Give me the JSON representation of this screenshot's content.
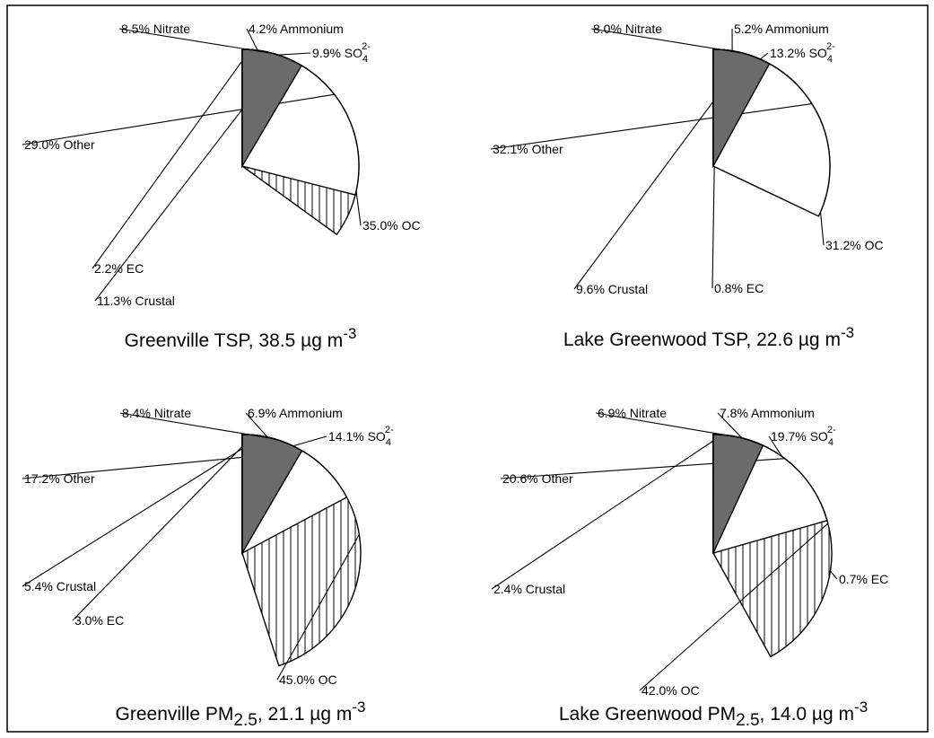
{
  "chart_data": [
    {
      "type": "pie",
      "title_parts": {
        "pre": "Greenville TSP, 38.5 µg m",
        "sub": "",
        "mid": "",
        "sup": "-3"
      },
      "slices": [
        {
          "name": "Ammonium",
          "label": "4.2% Ammonium",
          "value": 4.2,
          "fill": "hatch-diag"
        },
        {
          "name": "SO4",
          "label": "9.9% SO",
          "sub": "4",
          "sup": "2-",
          "value": 9.9,
          "fill": "gray"
        },
        {
          "name": "OC",
          "label": "35.0% OC",
          "value": 35.0,
          "fill": "hatch-vert"
        },
        {
          "name": "Crustal",
          "label": "11.3% Crustal",
          "value": 11.3,
          "fill": "dots"
        },
        {
          "name": "EC",
          "label": "2.2% EC",
          "value": 2.2,
          "fill": "black"
        },
        {
          "name": "Other",
          "label": "29.0% Other",
          "value": 29.0,
          "fill": "white"
        },
        {
          "name": "Nitrate",
          "label": "8.5% Nitrate",
          "value": 8.5,
          "fill": "darkgray"
        }
      ]
    },
    {
      "type": "pie",
      "title_parts": {
        "pre": "Lake Greenwood TSP, 22.6 µg m",
        "sub": "",
        "mid": "",
        "sup": "-3"
      },
      "slices": [
        {
          "name": "Ammonium",
          "label": "5.2% Ammonium",
          "value": 5.2,
          "fill": "hatch-diag"
        },
        {
          "name": "SO4",
          "label": "13.2% SO",
          "sub": "4",
          "sup": "2-",
          "value": 13.2,
          "fill": "gray"
        },
        {
          "name": "OC",
          "label": "31.2% OC",
          "value": 31.2,
          "fill": "hatch-vert"
        },
        {
          "name": "EC",
          "label": "0.8% EC",
          "value": 0.8,
          "fill": "black"
        },
        {
          "name": "Crustal",
          "label": "9.6% Crustal",
          "value": 9.6,
          "fill": "dots"
        },
        {
          "name": "Other",
          "label": "32.1% Other",
          "value": 32.1,
          "fill": "white"
        },
        {
          "name": "Nitrate",
          "label": "8.0% Nitrate",
          "value": 8.0,
          "fill": "darkgray"
        }
      ]
    },
    {
      "type": "pie",
      "title_parts": {
        "pre": "Greenville PM",
        "sub": "2.5",
        "mid": ", 21.1 µg m",
        "sup": "-3"
      },
      "slices": [
        {
          "name": "Ammonium",
          "label": "6.9% Ammonium",
          "value": 6.9,
          "fill": "hatch-diag"
        },
        {
          "name": "SO4",
          "label": "14.1% SO",
          "sub": "4",
          "sup": "2-",
          "value": 14.1,
          "fill": "gray"
        },
        {
          "name": "OC",
          "label": "45.0% OC",
          "value": 45.0,
          "fill": "hatch-vert"
        },
        {
          "name": "EC",
          "label": "3.0% EC",
          "value": 3.0,
          "fill": "black"
        },
        {
          "name": "Crustal",
          "label": "5.4% Crustal",
          "value": 5.4,
          "fill": "dots"
        },
        {
          "name": "Other",
          "label": "17.2% Other",
          "value": 17.2,
          "fill": "white"
        },
        {
          "name": "Nitrate",
          "label": "8.4% Nitrate",
          "value": 8.4,
          "fill": "darkgray"
        }
      ]
    },
    {
      "type": "pie",
      "title_parts": {
        "pre": "Lake Greenwood PM",
        "sub": "2.5",
        "mid": ", 14.0 µg m",
        "sup": "-3"
      },
      "slices": [
        {
          "name": "Ammonium",
          "label": "7.8% Ammonium",
          "value": 7.8,
          "fill": "hatch-diag"
        },
        {
          "name": "SO4",
          "label": "19.7% SO",
          "sub": "4",
          "sup": "2-",
          "value": 19.7,
          "fill": "gray"
        },
        {
          "name": "EC",
          "label": "0.7% EC",
          "value": 0.7,
          "fill": "black"
        },
        {
          "name": "OC",
          "label": "42.0% OC",
          "value": 42.0,
          "fill": "hatch-vert"
        },
        {
          "name": "Crustal",
          "label": "2.4% Crustal",
          "value": 2.4,
          "fill": "dots"
        },
        {
          "name": "Other",
          "label": "20.6% Other",
          "value": 20.6,
          "fill": "white"
        },
        {
          "name": "Nitrate",
          "label": "6.9% Nitrate",
          "value": 6.9,
          "fill": "darkgray"
        }
      ]
    }
  ],
  "colors": {
    "gray": "#d9d9d9",
    "darkgray": "#6b6b6b",
    "black": "#000000",
    "white": "#ffffff"
  }
}
